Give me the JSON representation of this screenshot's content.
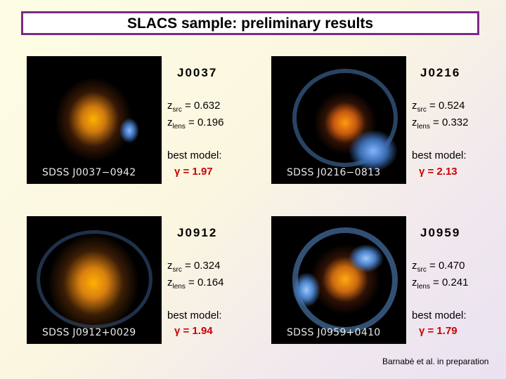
{
  "title": "SLACS sample: preliminary results",
  "panels": [
    {
      "image_label": "SDSS J0037−0942",
      "name": "J0037",
      "z_src_label": "z",
      "z_src_sub": "src",
      "z_src_value": "= 0.632",
      "z_lens_label": "z",
      "z_lens_sub": "lens",
      "z_lens_value": "= 0.196",
      "best_model": "best model:",
      "gamma": "γ = 1.97"
    },
    {
      "image_label": "SDSS J0216−0813",
      "name": "J0216",
      "z_src_label": "z",
      "z_src_sub": "src",
      "z_src_value": "= 0.524",
      "z_lens_label": "z",
      "z_lens_sub": "lens",
      "z_lens_value": "= 0.332",
      "best_model": "best model:",
      "gamma": "γ = 2.13"
    },
    {
      "image_label": "SDSS J0912+0029",
      "name": "J0912",
      "z_src_label": "z",
      "z_src_sub": "src",
      "z_src_value": "= 0.324",
      "z_lens_label": "z",
      "z_lens_sub": "lens",
      "z_lens_value": "= 0.164",
      "best_model": "best model:",
      "gamma": "γ = 1.94"
    },
    {
      "image_label": "SDSS J0959+0410",
      "name": "J0959",
      "z_src_label": "z",
      "z_src_sub": "src",
      "z_src_value": "= 0.470",
      "z_lens_label": "z",
      "z_lens_sub": "lens",
      "z_lens_value": "= 0.241",
      "best_model": "best model:",
      "gamma": "γ = 1.79"
    }
  ],
  "credit": "Barnabè et al. in preparation"
}
